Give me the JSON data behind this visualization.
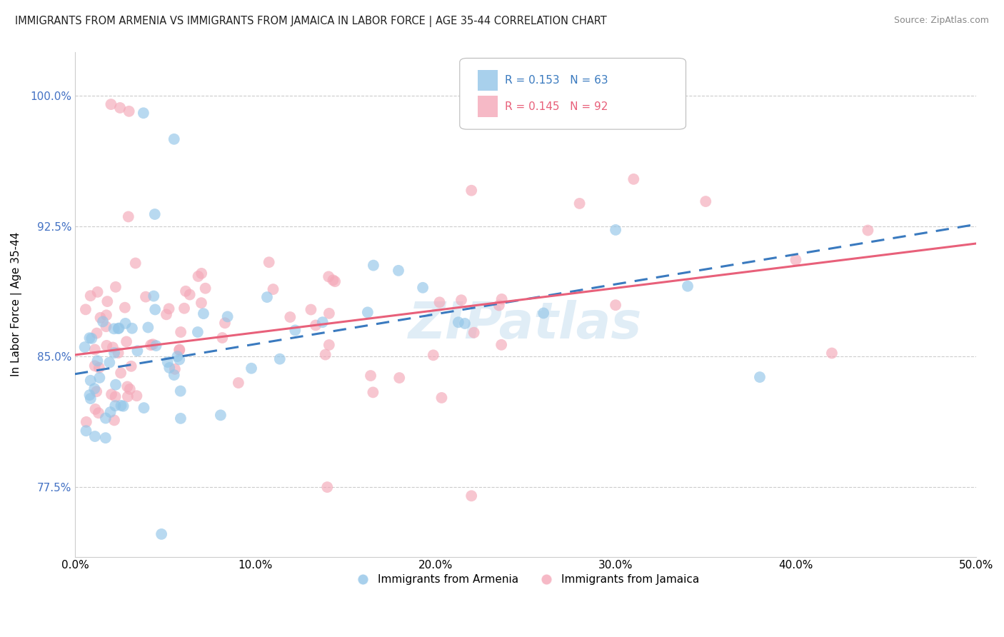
{
  "title": "IMMIGRANTS FROM ARMENIA VS IMMIGRANTS FROM JAMAICA IN LABOR FORCE | AGE 35-44 CORRELATION CHART",
  "source": "Source: ZipAtlas.com",
  "ylabel": "In Labor Force | Age 35-44",
  "xlim": [
    0.0,
    0.5
  ],
  "ylim": [
    0.735,
    1.025
  ],
  "xticks": [
    0.0,
    0.1,
    0.2,
    0.3,
    0.4,
    0.5
  ],
  "xticklabels": [
    "0.0%",
    "10.0%",
    "20.0%",
    "30.0%",
    "40.0%",
    "50.0%"
  ],
  "yticks": [
    0.775,
    0.85,
    0.925,
    1.0
  ],
  "yticklabels": [
    "77.5%",
    "85.0%",
    "92.5%",
    "100.0%"
  ],
  "armenia_color": "#93c5e8",
  "jamaica_color": "#f4a8b8",
  "armenia_line_color": "#3a7abf",
  "jamaica_line_color": "#e8607a",
  "armenia_R": 0.153,
  "armenia_N": 63,
  "jamaica_R": 0.145,
  "jamaica_N": 92,
  "watermark": "ZIPatlas",
  "ytick_color": "#4472c4",
  "grid_color": "#cccccc",
  "legend_text_color_armenia": "#3a7abf",
  "legend_text_color_jamaica": "#e8607a"
}
